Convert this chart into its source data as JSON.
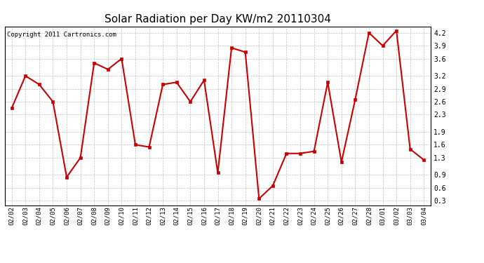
{
  "title": "Solar Radiation per Day KW/m2 20110304",
  "copyright": "Copyright 2011 Cartronics.com",
  "dates": [
    "02/02",
    "02/03",
    "02/04",
    "02/05",
    "02/06",
    "02/07",
    "02/08",
    "02/09",
    "02/10",
    "02/11",
    "02/12",
    "02/13",
    "02/14",
    "02/15",
    "02/16",
    "02/17",
    "02/18",
    "02/19",
    "02/20",
    "02/21",
    "02/22",
    "02/23",
    "02/24",
    "02/25",
    "02/26",
    "02/27",
    "02/28",
    "03/01",
    "03/02",
    "03/03",
    "03/04"
  ],
  "values": [
    2.45,
    3.2,
    3.0,
    2.6,
    0.85,
    1.3,
    3.5,
    3.35,
    3.6,
    1.6,
    1.55,
    3.0,
    3.05,
    2.6,
    3.1,
    0.95,
    3.85,
    3.75,
    0.35,
    0.65,
    1.4,
    1.4,
    1.45,
    3.05,
    1.2,
    2.65,
    4.2,
    3.9,
    4.25,
    1.5,
    1.25
  ],
  "line_color": "#cc0000",
  "marker_color": "#cc0000",
  "marker_size": 3,
  "line_width": 1.5,
  "yticks": [
    0.3,
    0.6,
    0.9,
    1.3,
    1.6,
    1.9,
    2.3,
    2.6,
    2.9,
    3.2,
    3.6,
    3.9,
    4.2
  ],
  "ylim": [
    0.2,
    4.35
  ],
  "background_color": "#ffffff",
  "grid_color": "#bbbbbb",
  "title_fontsize": 11,
  "copyright_fontsize": 6.5
}
